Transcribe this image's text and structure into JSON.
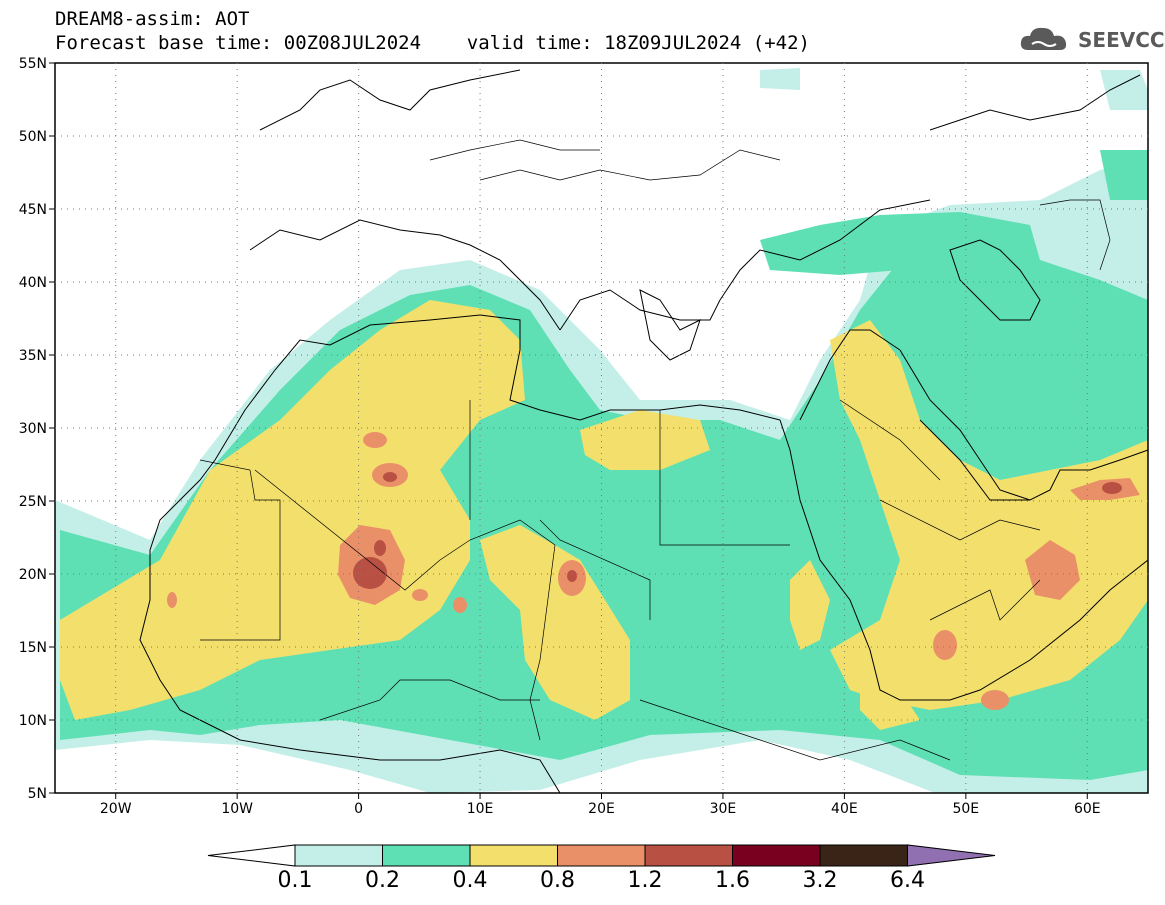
{
  "header": {
    "line1": "DREAM8-assim: AOT",
    "line2": "Forecast base time: 00Z08JUL2024    valid time: 18Z09JUL2024 (+42)"
  },
  "logo": {
    "text": "SEEVCCC",
    "icon": "cloud-icon"
  },
  "map": {
    "lat_labels": [
      "55N",
      "50N",
      "45N",
      "40N",
      "35N",
      "30N",
      "25N",
      "20N",
      "15N",
      "10N",
      "5N"
    ],
    "lon_labels": [
      "20W",
      "10W",
      "0",
      "10E",
      "20E",
      "30E",
      "40E",
      "50E",
      "60E"
    ],
    "lat_range": [
      5,
      55
    ],
    "lon_range": [
      -25,
      65
    ]
  },
  "colorbar": {
    "labels": [
      "0.1",
      "0.2",
      "0.4",
      "0.8",
      "1.2",
      "1.6",
      "3.2",
      "6.4"
    ],
    "colors": [
      "#c4efe8",
      "#5ee0b4",
      "#f3e06c",
      "#ea9068",
      "#b85044",
      "#7a0020",
      "#3a2418",
      "#9070b0"
    ]
  }
}
